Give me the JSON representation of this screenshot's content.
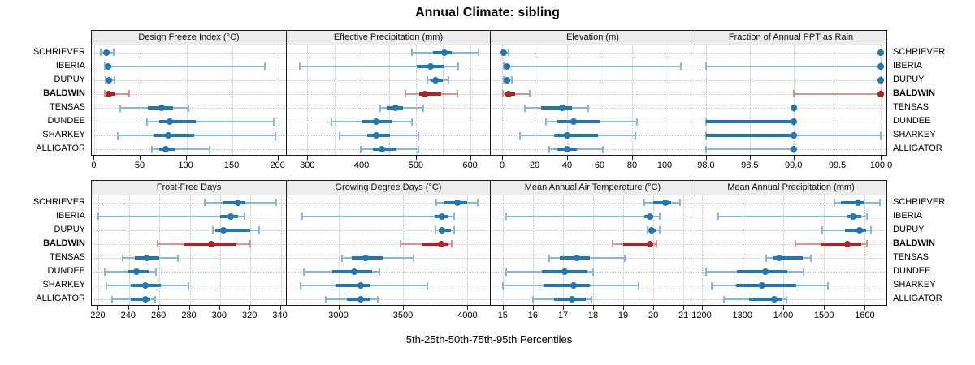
{
  "title": "Annual Climate: sibling",
  "caption": "5th-25th-50th-75th-95th Percentiles",
  "highlight_station": "BALDWIN",
  "colors": {
    "series": "#1f77b4",
    "series_whisker": "#85b8da",
    "highlight": "#b22222",
    "highlight_whisker": "#dc938b",
    "strip_bg": "#ececec",
    "panel_border": "#1a1a1a",
    "grid": "#bdbdbd"
  },
  "chart_data": {
    "type": "dotplot-percentiles",
    "panel_grid": "2x4",
    "legend": "none",
    "percentile_labels": [
      "5th",
      "25th",
      "50th",
      "75th",
      "95th"
    ],
    "rows": [
      "SCHRIEVER",
      "IBERIA",
      "DUPUY",
      "BALDWIN",
      "TENSAS",
      "DUNDEE",
      "SHARKEY",
      "ALLIGATOR"
    ],
    "panels": [
      {
        "label": "Design Freeze Index (°C)",
        "xlim": [
          -3,
          210
        ],
        "ticks": [
          0,
          50,
          100,
          150,
          200
        ],
        "tick_labels": [
          "0",
          "50",
          "100",
          "150",
          "200"
        ],
        "grid": [
          0,
          50,
          100,
          150,
          200
        ],
        "series": {
          "SCHRIEVER": [
            7,
            10,
            13,
            17,
            21
          ],
          "IBERIA": [
            11,
            13,
            15,
            18,
            185
          ],
          "DUPUY": [
            12,
            14,
            16,
            19,
            22
          ],
          "BALDWIN": [
            11,
            13,
            16,
            22,
            38
          ],
          "TENSAS": [
            28,
            58,
            73,
            85,
            102
          ],
          "DUNDEE": [
            57,
            70,
            82,
            110,
            195
          ],
          "SHARKEY": [
            25,
            64,
            80,
            108,
            197
          ],
          "ALLIGATOR": [
            62,
            70,
            77,
            88,
            125
          ]
        }
      },
      {
        "label": "Effective Precipitation (mm)",
        "xlim": [
          262,
          638
        ],
        "ticks": [
          300,
          400,
          500,
          600
        ],
        "tick_labels": [
          "300",
          "400",
          "500",
          "600"
        ],
        "grid": [
          300,
          350,
          400,
          450,
          500,
          550,
          600
        ],
        "series": {
          "SCHRIEVER": [
            492,
            532,
            553,
            566,
            616
          ],
          "IBERIA": [
            286,
            501,
            527,
            552,
            578
          ],
          "DUPUY": [
            521,
            528,
            536,
            549,
            560
          ],
          "BALDWIN": [
            481,
            506,
            517,
            546,
            577
          ],
          "TENSAS": [
            435,
            446,
            463,
            476,
            513
          ],
          "DUNDEE": [
            345,
            401,
            427,
            456,
            492
          ],
          "SHARKEY": [
            360,
            411,
            427,
            453,
            505
          ],
          "ALLIGATOR": [
            398,
            421,
            438,
            463,
            505
          ]
        }
      },
      {
        "label": "Elevation (m)",
        "xlim": [
          -7,
          119
        ],
        "ticks": [
          0,
          20,
          40,
          60,
          80,
          100
        ],
        "tick_labels": [
          "0",
          "20",
          "40",
          "60",
          "80",
          "100"
        ],
        "grid": [
          0,
          20,
          40,
          60,
          80,
          100
        ],
        "series": {
          "SCHRIEVER": [
            0,
            0.5,
            1,
            2,
            4
          ],
          "IBERIA": [
            1,
            2,
            3,
            5,
            110
          ],
          "DUPUY": [
            1,
            2,
            3,
            5,
            6
          ],
          "BALDWIN": [
            0.5,
            2,
            4,
            8,
            17
          ],
          "TENSAS": [
            14,
            24,
            37,
            43,
            53
          ],
          "DUNDEE": [
            27,
            34,
            44,
            60,
            83
          ],
          "SHARKEY": [
            11,
            32,
            40,
            59,
            82
          ],
          "ALLIGATOR": [
            29,
            34,
            40,
            46,
            62
          ]
        }
      },
      {
        "label": "Fraction of Annual PPT as Rain",
        "xlim": [
          97.88,
          100.07
        ],
        "ticks": [
          98.0,
          98.5,
          99.0,
          99.5,
          100.0
        ],
        "tick_labels": [
          "98.0",
          "98.5",
          "99.0",
          "99.5",
          "100.0"
        ],
        "grid": [
          98.0,
          98.5,
          99.0,
          99.5,
          100.0
        ],
        "series": {
          "SCHRIEVER": [
            100,
            100,
            100,
            100,
            100
          ],
          "IBERIA": [
            98,
            100,
            100,
            100,
            100
          ],
          "DUPUY": [
            100,
            100,
            100,
            100,
            100
          ],
          "BALDWIN": [
            99,
            100,
            100,
            100,
            100
          ],
          "TENSAS": [
            99,
            99,
            99,
            99,
            99
          ],
          "DUNDEE": [
            98,
            98,
            99,
            99,
            99
          ],
          "SHARKEY": [
            98,
            98,
            99,
            99,
            100
          ],
          "ALLIGATOR": [
            98,
            99,
            99,
            99,
            99
          ]
        }
      },
      {
        "label": "Frost-Free Days",
        "xlim": [
          215.5,
          344.5
        ],
        "ticks": [
          220,
          240,
          260,
          280,
          300,
          320,
          340
        ],
        "tick_labels": [
          "220",
          "240",
          "260",
          "280",
          "300",
          "320",
          "340"
        ],
        "grid": [
          220,
          240,
          260,
          280,
          300,
          320,
          340
        ],
        "series": {
          "SCHRIEVER": [
            290,
            302,
            312,
            316,
            337
          ],
          "IBERIA": [
            220,
            300,
            307,
            312,
            316
          ],
          "DUPUY": [
            295,
            297,
            302,
            320,
            326
          ],
          "BALDWIN": [
            259,
            276,
            294,
            311,
            320
          ],
          "TENSAS": [
            236,
            244,
            252,
            260,
            272
          ],
          "DUNDEE": [
            224,
            239,
            245,
            253,
            258
          ],
          "SHARKEY": [
            225,
            241,
            251,
            261,
            279
          ],
          "ALLIGATOR": [
            229,
            241,
            251,
            254,
            257
          ]
        }
      },
      {
        "label": "Growing Degree Days (°C)",
        "xlim": [
          2600,
          4180
        ],
        "ticks": [
          3000,
          3500,
          4000
        ],
        "tick_labels": [
          "3000",
          "3500",
          "4000"
        ],
        "grid": [
          3000,
          3500,
          4000
        ],
        "series": {
          "SCHRIEVER": [
            3760,
            3820,
            3920,
            3995,
            4080
          ],
          "IBERIA": [
            2720,
            3745,
            3800,
            3850,
            3895
          ],
          "DUPUY": [
            3755,
            3775,
            3805,
            3870,
            3895
          ],
          "BALDWIN": [
            3480,
            3650,
            3795,
            3855,
            3880
          ],
          "TENSAS": [
            3030,
            3105,
            3210,
            3345,
            3580
          ],
          "DUNDEE": [
            2730,
            2950,
            3120,
            3260,
            3320
          ],
          "SHARKEY": [
            2705,
            2980,
            3175,
            3250,
            3690
          ],
          "ALLIGATOR": [
            2905,
            3065,
            3170,
            3240,
            3305
          ]
        }
      },
      {
        "label": "Mean Annual Air Temperature (°C)",
        "xlim": [
          14.6,
          21.4
        ],
        "ticks": [
          15,
          16,
          17,
          18,
          19,
          20,
          21
        ],
        "tick_labels": [
          "15",
          "16",
          "17",
          "18",
          "19",
          "20",
          "21"
        ],
        "grid": [
          15,
          16,
          17,
          18,
          19,
          20,
          21
        ],
        "series": {
          "SCHRIEVER": [
            19.7,
            20.0,
            20.4,
            20.6,
            20.9
          ],
          "IBERIA": [
            15.1,
            19.7,
            19.9,
            20.0,
            20.2
          ],
          "DUPUY": [
            19.8,
            19.9,
            19.95,
            20.1,
            20.2
          ],
          "BALDWIN": [
            18.65,
            19.0,
            19.9,
            20.0,
            20.1
          ],
          "TENSAS": [
            16.55,
            16.9,
            17.45,
            17.9,
            19.05
          ],
          "DUNDEE": [
            15.1,
            16.3,
            17.05,
            17.8,
            18.0
          ],
          "SHARKEY": [
            15.0,
            16.35,
            17.35,
            17.9,
            19.5
          ],
          "ALLIGATOR": [
            16.0,
            16.7,
            17.3,
            17.75,
            17.95
          ]
        }
      },
      {
        "label": "Mean Annual Precipitation (mm)",
        "xlim": [
          1185,
          1655
        ],
        "ticks": [
          1200,
          1300,
          1400,
          1500,
          1600
        ],
        "tick_labels": [
          "1200",
          "1300",
          "1400",
          "1500",
          "1600"
        ],
        "grid": [
          1200,
          1300,
          1400,
          1500,
          1600
        ],
        "series": {
          "SCHRIEVER": [
            1525,
            1542,
            1584,
            1598,
            1638
          ],
          "IBERIA": [
            1240,
            1558,
            1572,
            1591,
            1605
          ],
          "DUPUY": [
            1496,
            1552,
            1588,
            1604,
            1616
          ],
          "BALDWIN": [
            1430,
            1493,
            1557,
            1591,
            1605
          ],
          "TENSAS": [
            1359,
            1375,
            1391,
            1447,
            1468
          ],
          "DUNDEE": [
            1210,
            1287,
            1357,
            1411,
            1450
          ],
          "SHARKEY": [
            1225,
            1284,
            1348,
            1431,
            1509
          ],
          "ALLIGATOR": [
            1254,
            1316,
            1378,
            1398,
            1408
          ]
        }
      }
    ]
  }
}
